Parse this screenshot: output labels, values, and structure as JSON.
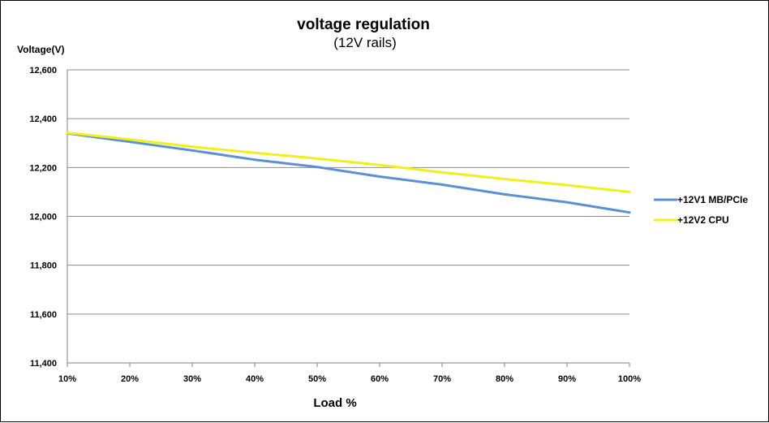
{
  "chart_data": {
    "type": "line",
    "title": "voltage regulation",
    "subtitle": "(12V rails)",
    "ylabel": "Voltage(V)",
    "xlabel": "Load %",
    "categories": [
      "10%",
      "20%",
      "30%",
      "40%",
      "50%",
      "60%",
      "70%",
      "80%",
      "90%",
      "100%"
    ],
    "yticks": [
      "11,400",
      "11,600",
      "11,800",
      "12,000",
      "12,200",
      "12,400",
      "12,600"
    ],
    "ylim": [
      11400,
      12600
    ],
    "ytick_values": [
      11400,
      11600,
      11800,
      12000,
      12200,
      12400,
      12600
    ],
    "grid": true,
    "legend_position": "right",
    "series": [
      {
        "name": "+12V1 MB/PCIe",
        "color": "#5b8fd6",
        "values": [
          12340,
          12305,
          12270,
          12232,
          12202,
          12163,
          12130,
          12090,
          12058,
          12016
        ]
      },
      {
        "name": "+12V2 CPU",
        "color": "#f0f01a",
        "values": [
          12342,
          12315,
          12285,
          12260,
          12237,
          12210,
          12180,
          12153,
          12128,
          12100
        ]
      }
    ]
  }
}
